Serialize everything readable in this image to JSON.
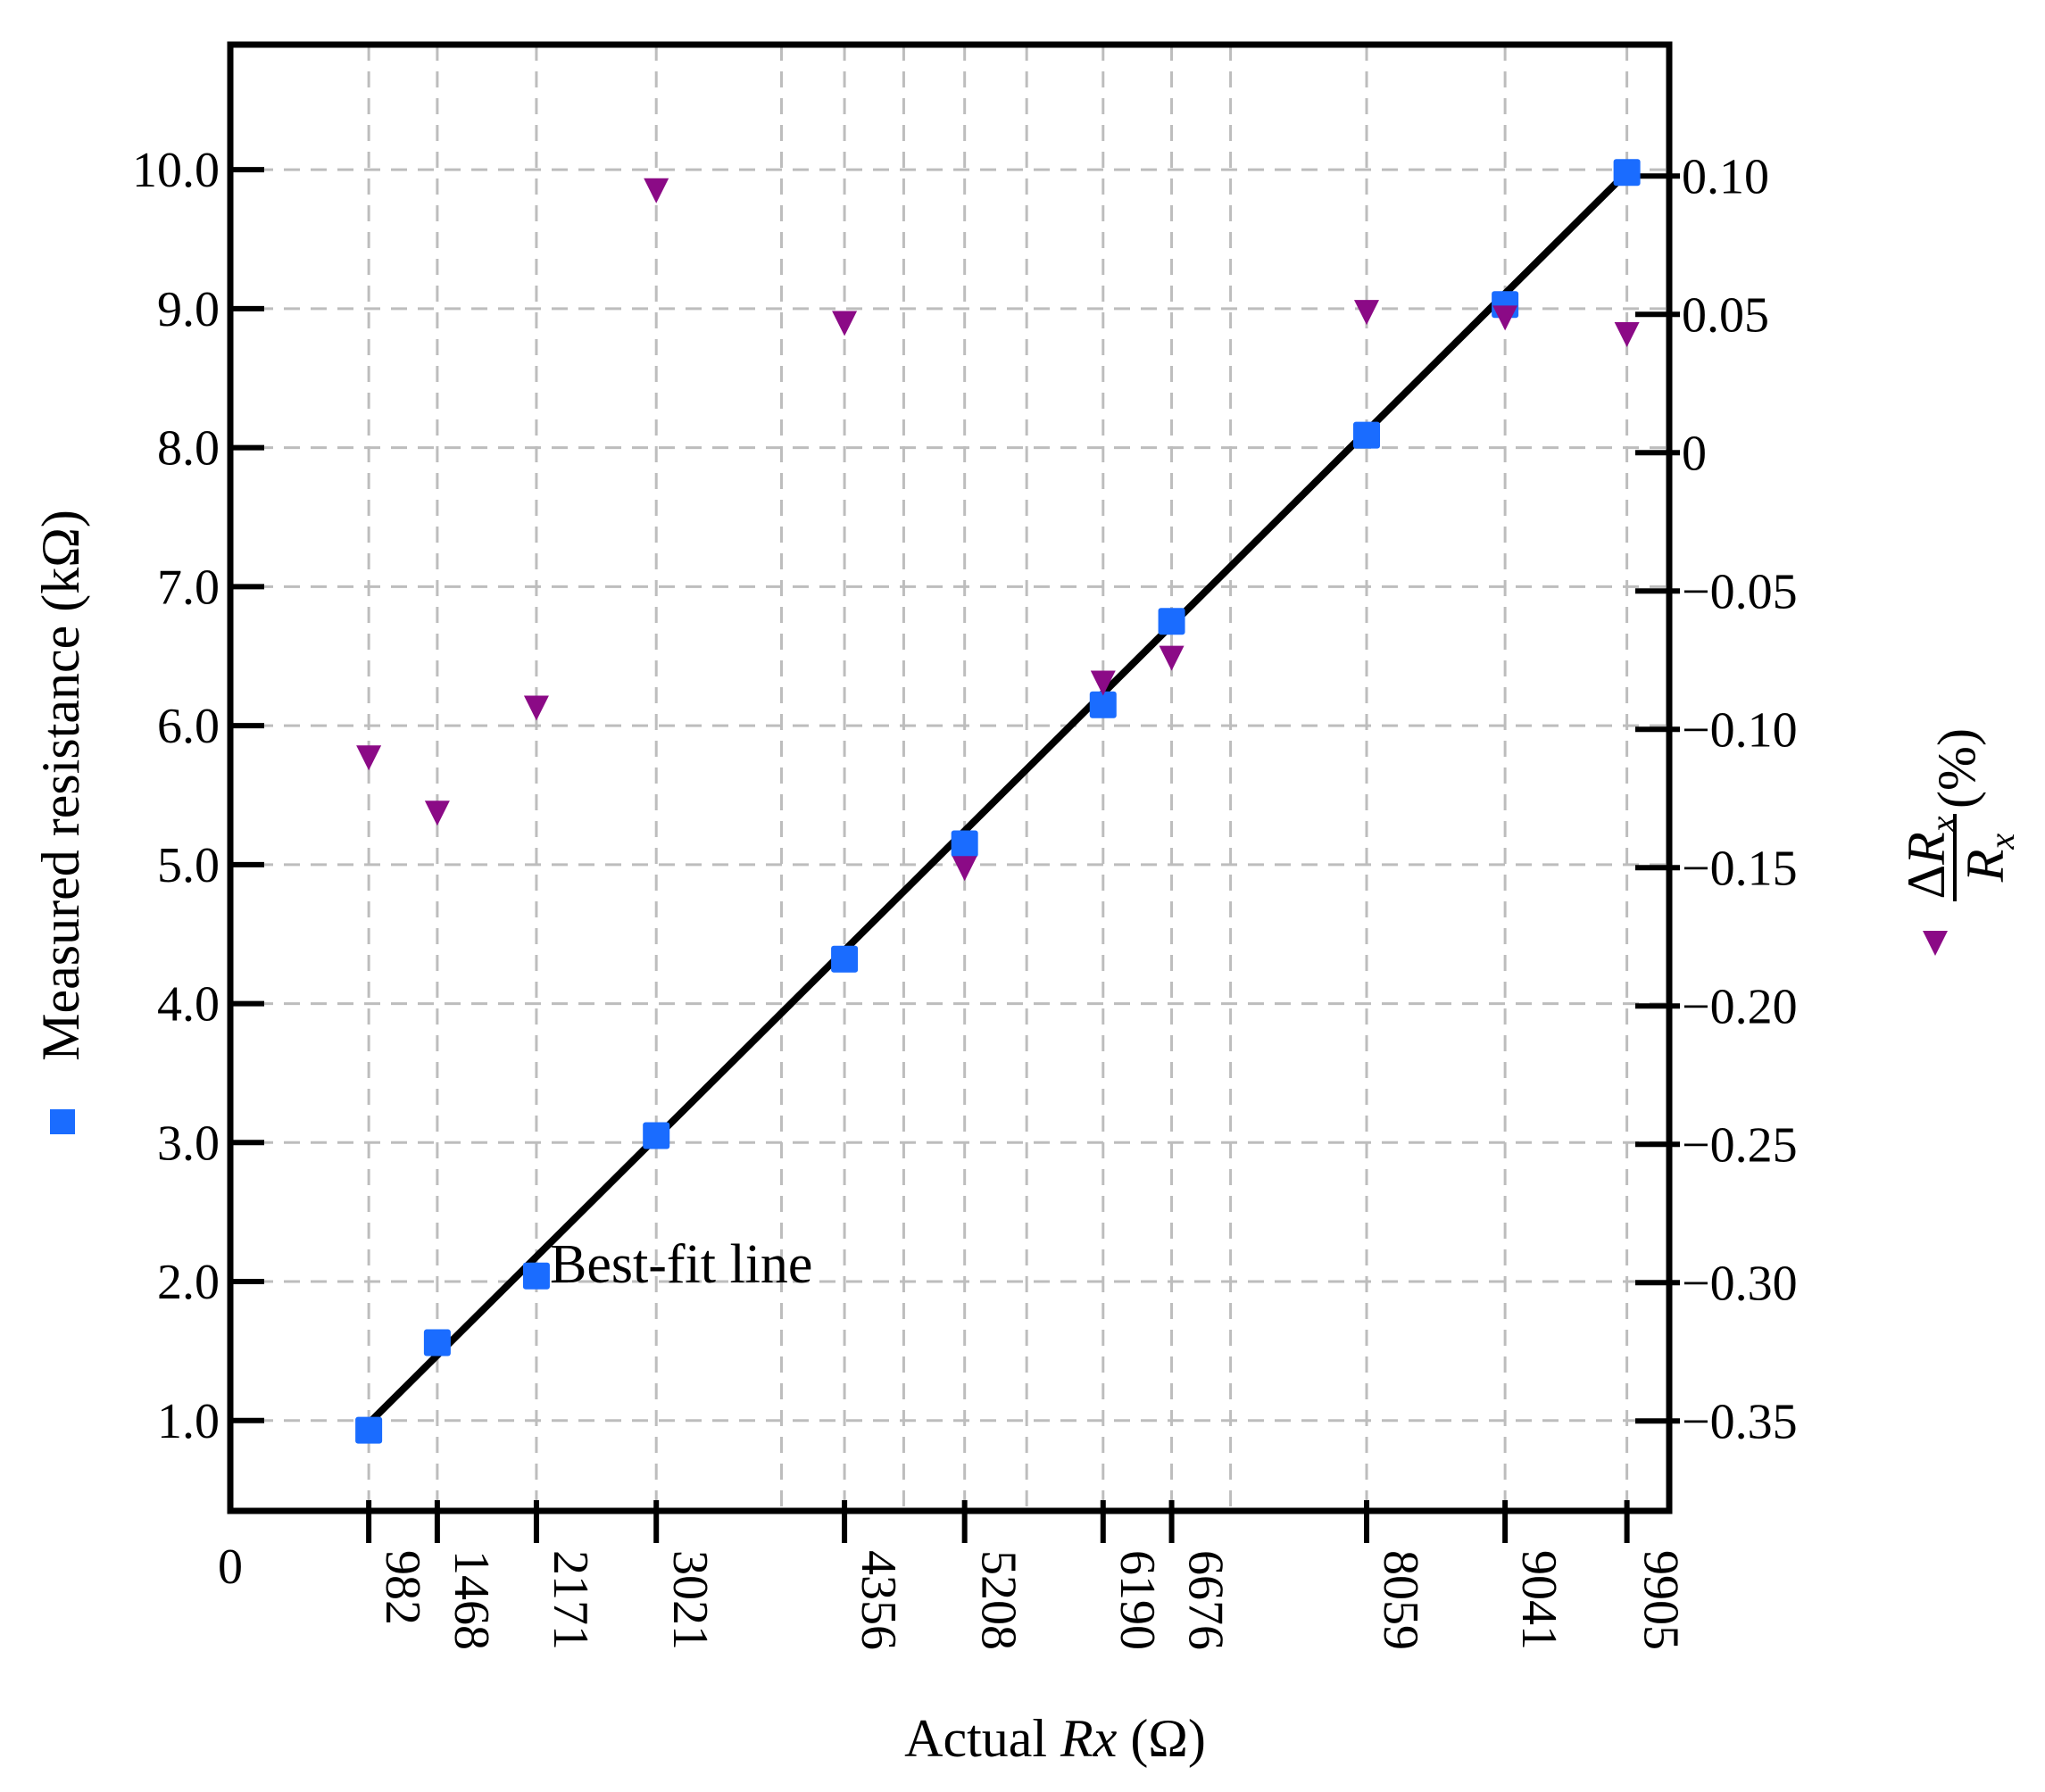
{
  "chart_data": {
    "type": "scatter",
    "title": "",
    "xlabel_prefix": "Actual ",
    "xlabel_italic": "Rx",
    "xlabel_suffix": " (Ω)",
    "ylabel_left": "Measured resistance (kΩ)",
    "ylabel_right_suffix": " (%)",
    "ylabel_right_delta": "Δ",
    "ylabel_right_R": "R",
    "ylabel_right_sub": "x",
    "x_origin_label": "0",
    "xlim": [
      0,
      10205
    ],
    "ylim_left": [
      0.35,
      10.9
    ],
    "ylim_right": [
      -0.3825,
      0.1475
    ],
    "x_ticks": [
      982,
      1468,
      2171,
      3021,
      4356,
      5208,
      6190,
      6676,
      8059,
      9041,
      9905
    ],
    "x_tick_labels": [
      "982",
      "1468",
      "2171",
      "3021",
      "4356",
      "5208",
      "6190",
      "6676",
      "8059",
      "9041",
      "9905"
    ],
    "x_grid": [
      982,
      1468,
      2171,
      3021,
      3909,
      4356,
      4776,
      5208,
      5648,
      6190,
      6676,
      7094,
      8059,
      9041,
      9905
    ],
    "y_left_ticks": [
      1.0,
      2.0,
      3.0,
      4.0,
      5.0,
      6.0,
      7.0,
      8.0,
      9.0,
      10.0
    ],
    "y_left_tick_labels": [
      "1.0",
      "2.0",
      "3.0",
      "4.0",
      "5.0",
      "6.0",
      "7.0",
      "8.0",
      "9.0",
      "10.0"
    ],
    "y_right_ticks": [
      -0.35,
      -0.3,
      -0.25,
      -0.2,
      -0.15,
      -0.1,
      -0.05,
      0,
      0.05,
      0.1
    ],
    "y_right_tick_labels": [
      "−0.35",
      "−0.30",
      "−0.25",
      "−0.20",
      "−0.15",
      "−0.10",
      "−0.05",
      "0",
      "0.05",
      "0.10"
    ],
    "grid": true,
    "series": [
      {
        "name": "Measured resistance",
        "axis": "left",
        "marker": "square",
        "color": "#1a6cff",
        "x": [
          982,
          1468,
          2171,
          3021,
          4356,
          5208,
          6190,
          6676,
          8059,
          9041,
          9905
        ],
        "y": [
          0.93,
          1.56,
          2.04,
          3.05,
          4.32,
          5.15,
          6.15,
          6.75,
          8.09,
          9.03,
          9.98
        ]
      },
      {
        "name": "ΔRx/Rx (%)",
        "axis": "right",
        "marker": "triangle-down",
        "color": "#8b0a86",
        "x": [
          982,
          1468,
          2171,
          3021,
          4356,
          5208,
          6190,
          6676,
          8059,
          9041,
          9905
        ],
        "y": [
          -0.11,
          -0.13,
          -0.092,
          0.095,
          0.047,
          -0.15,
          -0.083,
          -0.074,
          0.051,
          0.049,
          0.043
        ]
      },
      {
        "name": "Best-fit line",
        "axis": "left",
        "type": "line",
        "color": "#000000",
        "x": [
          982,
          9905
        ],
        "y": [
          0.98,
          9.98
        ]
      }
    ],
    "annotations": [
      {
        "text": "Best-fit line",
        "x": 3000,
        "y": 2.05
      }
    ]
  }
}
